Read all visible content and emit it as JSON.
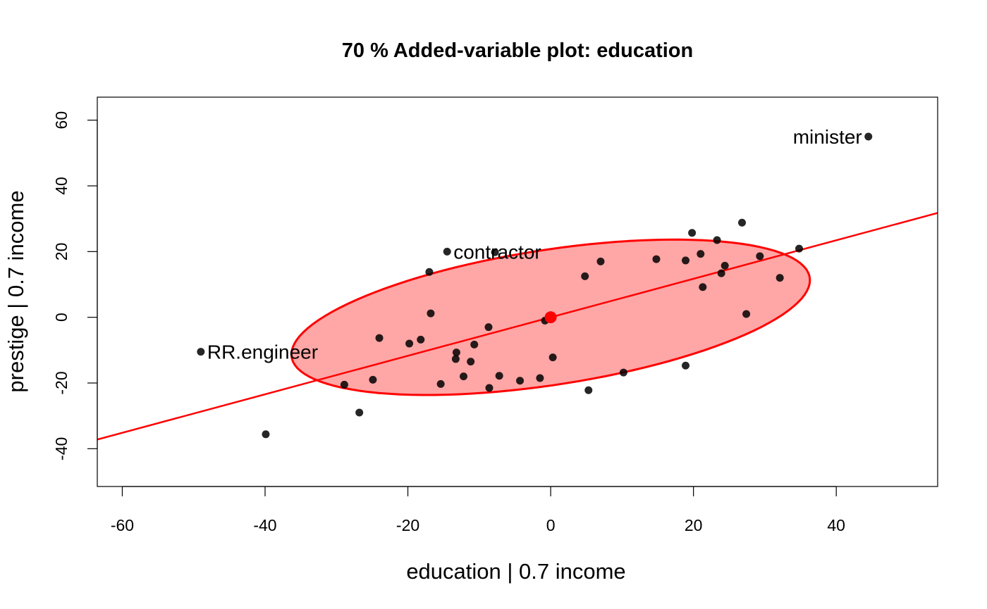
{
  "chart_data": {
    "type": "scatter",
    "title": "70 % Added-variable plot: education",
    "xlabel": "education |  0.7 income",
    "ylabel": "prestige |  0.7 income",
    "xlim": [
      -63.5,
      54.2
    ],
    "ylim": [
      -51.5,
      67
    ],
    "xticks": [
      -60,
      -40,
      -20,
      0,
      20,
      40
    ],
    "yticks": [
      -40,
      -20,
      0,
      20,
      40,
      60
    ],
    "grid": false,
    "point_color": "#000000",
    "line_color": "#ff0000",
    "ellipse_fill": "#ffa6a6",
    "ellipse_stroke": "#ff0000",
    "regression_line": {
      "intercept": 0.0,
      "slope": 0.586
    },
    "ellipse": {
      "center": [
        0,
        0
      ],
      "semi_major": 38.7,
      "semi_minor": 19.5,
      "angle_deg": 23.6,
      "level": 0.7
    },
    "centroid": [
      0,
      0
    ],
    "points": [
      {
        "x": 44.5,
        "y": 55.0
      },
      {
        "x": -49.0,
        "y": -10.5
      },
      {
        "x": -14.5,
        "y": 20.0
      },
      {
        "x": -7.8,
        "y": 19.8
      },
      {
        "x": -17.0,
        "y": 13.8
      },
      {
        "x": -16.8,
        "y": 1.2
      },
      {
        "x": -39.9,
        "y": -35.6
      },
      {
        "x": -28.9,
        "y": -20.5
      },
      {
        "x": -26.8,
        "y": -29.0
      },
      {
        "x": -24.9,
        "y": -19.0
      },
      {
        "x": -24.0,
        "y": -6.3
      },
      {
        "x": -19.8,
        "y": -8.0
      },
      {
        "x": -18.2,
        "y": -6.8
      },
      {
        "x": -15.4,
        "y": -20.3
      },
      {
        "x": -13.3,
        "y": -12.7
      },
      {
        "x": -13.2,
        "y": -10.7
      },
      {
        "x": -12.2,
        "y": -18.0
      },
      {
        "x": -11.2,
        "y": -13.5
      },
      {
        "x": -10.7,
        "y": -8.3
      },
      {
        "x": -8.7,
        "y": -3.0
      },
      {
        "x": -8.6,
        "y": -21.5
      },
      {
        "x": -7.2,
        "y": -17.8
      },
      {
        "x": -4.3,
        "y": -19.3
      },
      {
        "x": -1.5,
        "y": -18.5
      },
      {
        "x": -0.8,
        "y": -1.0
      },
      {
        "x": 0.3,
        "y": -12.2
      },
      {
        "x": 4.8,
        "y": 12.5
      },
      {
        "x": 5.3,
        "y": -22.2
      },
      {
        "x": 7.0,
        "y": 17.0
      },
      {
        "x": 10.2,
        "y": -16.8
      },
      {
        "x": 14.8,
        "y": 17.7
      },
      {
        "x": 18.9,
        "y": 17.3
      },
      {
        "x": 18.9,
        "y": -14.7
      },
      {
        "x": 19.8,
        "y": 25.7
      },
      {
        "x": 21.0,
        "y": 19.3
      },
      {
        "x": 21.3,
        "y": 9.2
      },
      {
        "x": 23.3,
        "y": 23.5
      },
      {
        "x": 23.9,
        "y": 13.4
      },
      {
        "x": 24.4,
        "y": 15.7
      },
      {
        "x": 26.8,
        "y": 28.8
      },
      {
        "x": 27.4,
        "y": 1.0
      },
      {
        "x": 29.3,
        "y": 18.6
      },
      {
        "x": 32.1,
        "y": 12.0
      },
      {
        "x": 34.8,
        "y": 20.9
      }
    ],
    "annotations": [
      {
        "text": "minister",
        "x": 44.5,
        "y": 55.0,
        "side": "left"
      },
      {
        "text": "RR.engineer",
        "x": -49.0,
        "y": -10.5,
        "side": "right"
      },
      {
        "text": "contractor",
        "x": -14.5,
        "y": 20.0,
        "side": "right"
      }
    ]
  }
}
